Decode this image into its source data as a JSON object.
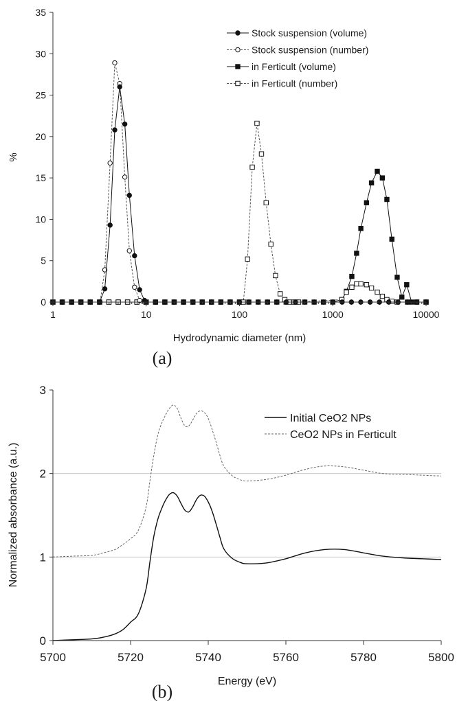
{
  "chart_data": [
    {
      "type": "line",
      "panel_label": "(a)",
      "xlabel": "Hydrodynamic diameter (nm)",
      "ylabel": "%",
      "xscale": "log",
      "xlim": [
        1,
        10000
      ],
      "ylim": [
        0,
        35
      ],
      "x_ticks": [
        "1",
        "10",
        "100",
        "1000",
        "10000"
      ],
      "y_ticks": [
        "0",
        "5",
        "10",
        "15",
        "20",
        "25",
        "30",
        "35"
      ],
      "grid": false,
      "legend_position": "top-right",
      "series": [
        {
          "name": "Stock suspension (volume)",
          "style": "solid",
          "marker": "filled-circle",
          "x": [
            3.6,
            4.1,
            4.6,
            5.2,
            5.9,
            6.6,
            7.5,
            8.5,
            9.6
          ],
          "y": [
            1.6,
            9.3,
            20.8,
            26.0,
            21.5,
            12.9,
            5.6,
            1.5,
            0.2
          ]
        },
        {
          "name": "Stock suspension (number)",
          "style": "dashed",
          "marker": "open-circle",
          "x": [
            3.2,
            3.6,
            4.1,
            4.6,
            5.2,
            5.9,
            6.6,
            7.5,
            8.5,
            9.6
          ],
          "y": [
            0.0,
            3.9,
            16.8,
            28.9,
            26.4,
            15.1,
            6.2,
            1.8,
            0.2,
            0.0
          ]
        },
        {
          "name": "in Ferticult (volume)",
          "style": "solid",
          "marker": "filled-square",
          "x": [
            1250,
            1400,
            1600,
            1800,
            2000,
            2300,
            2600,
            3000,
            3400,
            3800,
            4300,
            4900,
            5500,
            6200,
            7000
          ],
          "y": [
            0.3,
            1.3,
            3.1,
            5.9,
            8.9,
            12.0,
            14.4,
            15.8,
            15.0,
            12.4,
            7.6,
            3.0,
            0.6,
            2.1,
            0.0
          ]
        },
        {
          "name": "in Ferticult (number)",
          "style": "dashed",
          "marker": "open-square",
          "x": [
            110,
            122,
            137,
            154,
            172,
            193,
            217,
            243,
            273,
            306,
            343,
            385,
            430,
            1250,
            1400,
            1600,
            1800,
            2000,
            2300,
            2600,
            3000,
            3400,
            3800,
            4300,
            4900
          ],
          "y": [
            0.0,
            5.2,
            16.3,
            21.6,
            17.9,
            12.0,
            7.0,
            3.2,
            1.0,
            0.3,
            0.0,
            0.0,
            0.0,
            0.3,
            1.2,
            1.8,
            2.2,
            2.2,
            2.1,
            1.7,
            1.2,
            0.7,
            0.3,
            0.1,
            0.0
          ]
        }
      ]
    },
    {
      "type": "line",
      "panel_label": "(b)",
      "xlabel": "Energy (eV)",
      "ylabel": "Normalized absorbance (a.u.)",
      "xlim": [
        5700,
        5800
      ],
      "ylim": [
        0,
        3
      ],
      "x_ticks": [
        "5700",
        "5720",
        "5740",
        "5760",
        "5780",
        "5800"
      ],
      "y_ticks": [
        "0",
        "1",
        "2",
        "3"
      ],
      "grid": true,
      "legend_position": "top-right",
      "series": [
        {
          "name": "Initial CeO2 NPs",
          "style": "solid",
          "x": [
            5700,
            5705,
            5710,
            5713,
            5716,
            5718,
            5720,
            5722,
            5724,
            5725,
            5726,
            5727,
            5728,
            5729,
            5730,
            5731,
            5732,
            5733,
            5734,
            5735,
            5736,
            5737,
            5738,
            5739,
            5740,
            5741,
            5742,
            5743,
            5744,
            5746,
            5748,
            5750,
            5755,
            5760,
            5765,
            5770,
            5775,
            5780,
            5785,
            5790,
            5795,
            5800
          ],
          "y": [
            0.0,
            0.01,
            0.02,
            0.04,
            0.08,
            0.13,
            0.22,
            0.32,
            0.62,
            0.95,
            1.25,
            1.45,
            1.58,
            1.68,
            1.75,
            1.77,
            1.73,
            1.64,
            1.56,
            1.54,
            1.6,
            1.69,
            1.74,
            1.73,
            1.66,
            1.55,
            1.4,
            1.24,
            1.1,
            0.99,
            0.94,
            0.92,
            0.93,
            0.98,
            1.05,
            1.09,
            1.09,
            1.05,
            1.01,
            0.99,
            0.98,
            0.97
          ]
        },
        {
          "name": "CeO2 NPs in Ferticult",
          "style": "dashed",
          "x": [
            5700,
            5705,
            5710,
            5713,
            5716,
            5718,
            5720,
            5722,
            5724,
            5725,
            5726,
            5727,
            5728,
            5729,
            5730,
            5731,
            5732,
            5733,
            5734,
            5735,
            5736,
            5737,
            5738,
            5739,
            5740,
            5741,
            5742,
            5743,
            5744,
            5746,
            5748,
            5750,
            5755,
            5760,
            5765,
            5770,
            5775,
            5780,
            5785,
            5790,
            5795,
            5800
          ],
          "y": [
            1.0,
            1.01,
            1.02,
            1.05,
            1.09,
            1.15,
            1.22,
            1.32,
            1.6,
            1.92,
            2.22,
            2.46,
            2.6,
            2.7,
            2.78,
            2.82,
            2.78,
            2.66,
            2.57,
            2.57,
            2.64,
            2.72,
            2.75,
            2.73,
            2.66,
            2.53,
            2.38,
            2.22,
            2.09,
            1.98,
            1.93,
            1.91,
            1.93,
            1.98,
            2.05,
            2.09,
            2.08,
            2.04,
            2.0,
            1.99,
            1.98,
            1.97
          ]
        }
      ]
    }
  ]
}
